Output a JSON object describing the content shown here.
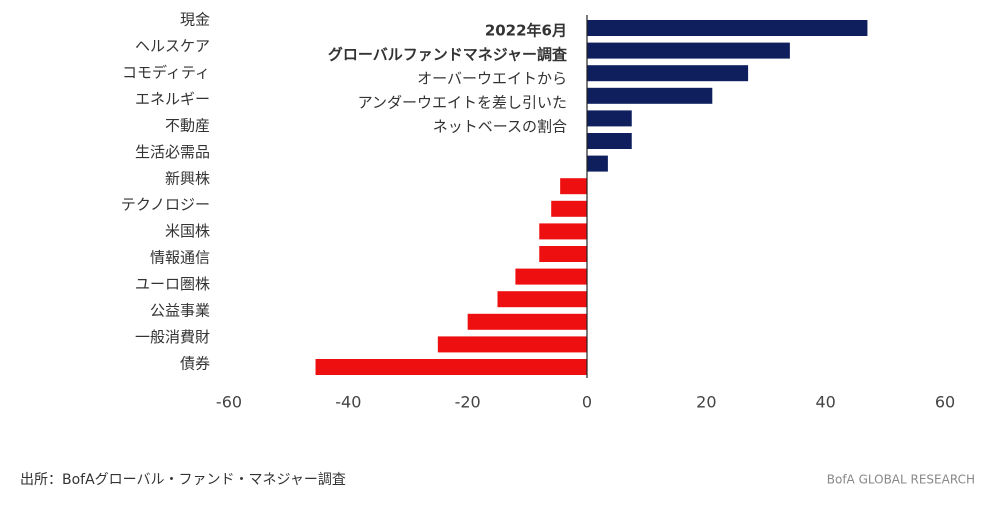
{
  "chart_data": {
    "type": "barh",
    "categories": [
      "現金",
      "ヘルスケア",
      "コモディティ",
      "エネルギー",
      "不動産",
      "生活必需品",
      null,
      "新興株",
      "テクノロジー",
      "米国株",
      null,
      "情報通信",
      "ユーロ圏株",
      "公益事業",
      "一般消費財",
      "債券"
    ],
    "values": [
      47,
      34,
      27,
      21,
      7.5,
      7.5,
      3.5,
      -4.5,
      -6,
      -8,
      -8,
      -12,
      -15,
      -20,
      -25,
      -45.5
    ],
    "positive_color": "#0f1f5e",
    "negative_color": "#ee1010",
    "xlim": [
      -60,
      60
    ],
    "xticks": [
      -60,
      -40,
      -20,
      0,
      20,
      40,
      60
    ],
    "annotation": [
      "2022年6月",
      "グローバルファンドマネジャー調査",
      "オーバーウエイトから",
      "アンダーウエイトを差し引いた",
      "ネットベースの割合"
    ],
    "source": "出所：BofAグローバル・ファンド・マネジャー調査",
    "brand": "BofA GLOBAL RESEARCH"
  }
}
